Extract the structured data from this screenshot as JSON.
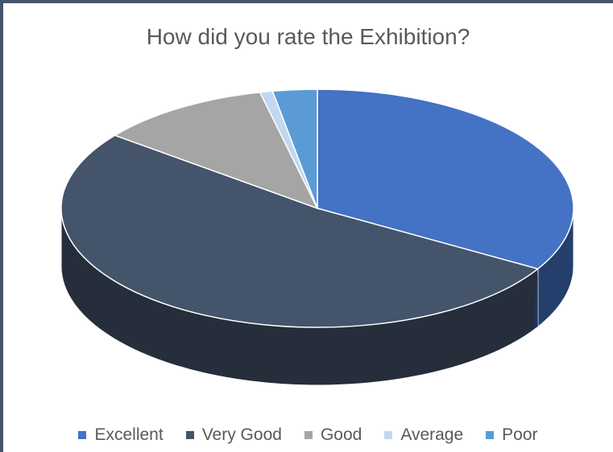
{
  "chart_data": {
    "type": "pie",
    "style": "3d",
    "title": "How did you rate the Exhibition?",
    "legend_position": "bottom",
    "slices": [
      {
        "name": "Excellent",
        "value": 33.5,
        "color": "#4472c4"
      },
      {
        "name": "Very Good",
        "value": 52.0,
        "color": "#44546a"
      },
      {
        "name": "Good",
        "value": 10.9,
        "color": "#a5a5a5"
      },
      {
        "name": "Average",
        "value": 0.8,
        "color": "#c2d8f0"
      },
      {
        "name": "Poor",
        "value": 2.8,
        "color": "#5b9bd5"
      }
    ]
  }
}
